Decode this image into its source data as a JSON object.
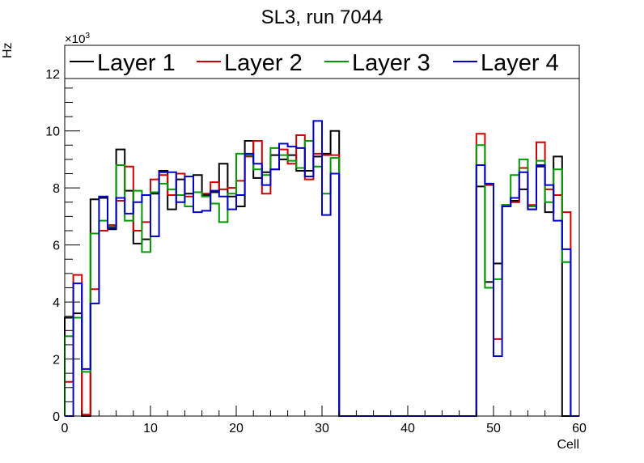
{
  "chart_data": {
    "type": "histogram-step",
    "title": "SL3, run 7044",
    "xlabel": "Cell",
    "ylabel": "Hz",
    "y_multiplier": "×10",
    "y_multiplier_exp": "3",
    "xlim": [
      0,
      60
    ],
    "ylim": [
      0,
      13
    ],
    "x_ticks": [
      0,
      10,
      20,
      30,
      40,
      50,
      60
    ],
    "y_ticks": [
      0,
      2,
      4,
      6,
      8,
      10,
      12
    ],
    "bin_width": 1,
    "legend_position": "top",
    "series": [
      {
        "name": "Layer 1",
        "color": "#000000",
        "values": [
          3.45,
          3.6,
          0.0,
          7.6,
          7.65,
          6.55,
          9.35,
          7.9,
          6.05,
          6.2,
          7.8,
          8.6,
          7.25,
          8.3,
          7.8,
          8.45,
          7.75,
          7.85,
          8.85,
          7.7,
          7.35,
          9.65,
          8.35,
          8.55,
          9.15,
          9.0,
          9.15,
          8.6,
          8.6,
          9.1,
          9.2,
          10.0,
          0,
          0,
          0,
          0,
          0,
          0,
          0,
          0,
          0,
          0,
          0,
          0,
          0,
          0,
          0,
          0,
          8.05,
          4.7,
          5.35,
          7.4,
          7.55,
          7.95,
          7.25,
          8.75,
          7.15,
          9.1,
          0,
          0
        ]
      },
      {
        "name": "Layer 2",
        "color": "#cc0000",
        "values": [
          1.2,
          4.95,
          0.05,
          4.45,
          6.5,
          6.7,
          7.55,
          8.75,
          6.5,
          6.8,
          8.3,
          8.45,
          7.75,
          8.5,
          7.7,
          7.85,
          7.8,
          8.2,
          7.95,
          8.0,
          8.25,
          9.1,
          9.65,
          7.8,
          8.65,
          9.35,
          8.85,
          9.85,
          8.3,
          9.2,
          9.15,
          9.15,
          0,
          0,
          0,
          0,
          0,
          0,
          0,
          0,
          0,
          0,
          0,
          0,
          0,
          0,
          0,
          0,
          9.9,
          8.1,
          2.7,
          7.35,
          7.5,
          8.7,
          7.4,
          9.6,
          7.95,
          7.75,
          7.15,
          0
        ]
      },
      {
        "name": "Layer 3",
        "color": "#009900",
        "values": [
          2.8,
          3.45,
          1.55,
          6.4,
          6.85,
          6.65,
          8.8,
          6.85,
          7.9,
          5.75,
          7.85,
          8.15,
          7.95,
          7.75,
          7.35,
          7.85,
          7.7,
          7.45,
          6.8,
          7.8,
          9.2,
          9.15,
          8.65,
          8.45,
          9.4,
          9.15,
          8.95,
          8.7,
          9.65,
          8.75,
          7.8,
          9.05,
          0,
          0,
          0,
          0,
          0,
          0,
          0,
          0,
          0,
          0,
          0,
          0,
          0,
          0,
          0,
          0,
          9.5,
          4.5,
          4.8,
          7.4,
          8.45,
          9.0,
          7.35,
          8.95,
          7.5,
          8.65,
          5.4,
          0
        ]
      },
      {
        "name": "Layer 4",
        "color": "#0000cc",
        "values": [
          0.0,
          4.65,
          1.65,
          3.95,
          7.7,
          6.6,
          7.65,
          7.1,
          7.5,
          7.75,
          6.3,
          8.55,
          8.55,
          7.5,
          8.4,
          7.15,
          7.2,
          7.9,
          7.7,
          7.25,
          7.75,
          9.2,
          8.85,
          8.1,
          8.65,
          9.55,
          9.45,
          9.4,
          8.4,
          10.35,
          7.05,
          8.5,
          0,
          0,
          0,
          0,
          0,
          0,
          0,
          0,
          0,
          0,
          0,
          0,
          0,
          0,
          0,
          0,
          8.8,
          8.15,
          2.1,
          7.35,
          7.65,
          8.55,
          7.25,
          8.8,
          8.1,
          6.85,
          5.85,
          0
        ]
      }
    ]
  }
}
